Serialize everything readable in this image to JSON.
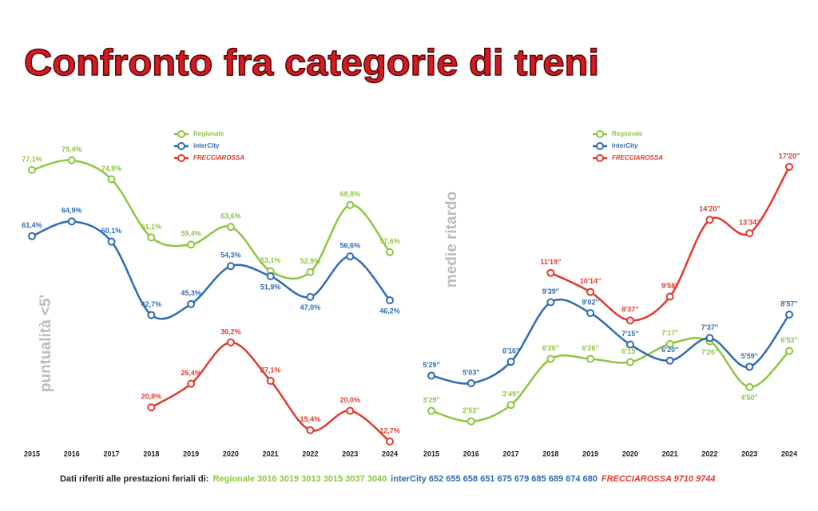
{
  "title": "Confronto fra categorie di treni",
  "chart_data": [
    {
      "type": "line",
      "ylabel": "puntualità <5'",
      "legend": "top-center",
      "categories": [
        "2015",
        "2016",
        "2017",
        "2018",
        "2019",
        "2020",
        "2021",
        "2022",
        "2023",
        "2024"
      ],
      "ylim": [
        11,
        82
      ],
      "series": [
        {
          "name": "Regionale",
          "color": "#8dc63f",
          "values": [
            77.1,
            79.4,
            74.9,
            61.1,
            59.4,
            63.6,
            53.1,
            52.9,
            68.8,
            57.6
          ],
          "value_labels": [
            "77,1%",
            "79,4%",
            "74,9%",
            "61,1%",
            "59,4%",
            "63,6%",
            "53,1%",
            "52,9%",
            "68,8%",
            "57,6%"
          ]
        },
        {
          "name": "interCity",
          "color": "#2e6bb5",
          "values": [
            61.4,
            64.9,
            60.1,
            42.7,
            45.3,
            54.3,
            51.9,
            47.0,
            56.6,
            46.2
          ],
          "value_labels": [
            "61,4%",
            "64,9%",
            "60,1%",
            "42,7%",
            "45,3%",
            "54,3%",
            "51,9%",
            "47,0%",
            "56,6%",
            "46,2%"
          ]
        },
        {
          "name": "FRECCIAROSSA",
          "color": "#e03a2e",
          "values": [
            null,
            null,
            null,
            20.8,
            26.4,
            36.2,
            27.1,
            15.4,
            20.0,
            12.7
          ],
          "value_labels": [
            null,
            null,
            null,
            "20,8%",
            "26,4%",
            "36,2%",
            "27,1%",
            "15,4%",
            "20,0%",
            "12,7%"
          ]
        }
      ]
    },
    {
      "type": "line",
      "ylabel": "medie ritardo",
      "legend": "top-center",
      "categories": [
        "2015",
        "2016",
        "2017",
        "2018",
        "2019",
        "2020",
        "2021",
        "2022",
        "2023",
        "2024"
      ],
      "ylim": [
        80,
        1100
      ],
      "series": [
        {
          "name": "Regionale",
          "color": "#8dc63f",
          "values": [
            209,
            173,
            229,
            386,
            386,
            375,
            437,
            446,
            290,
            413
          ],
          "value_labels": [
            "3'29''",
            "2'53''",
            "3'49''",
            "6'26''",
            "6'26''",
            "6'15''",
            "7'17''",
            "7'26''",
            "4'50''",
            "6'53''"
          ]
        },
        {
          "name": "interCity",
          "color": "#2e6bb5",
          "values": [
            329,
            303,
            376,
            579,
            542,
            435,
            380,
            457,
            359,
            537
          ],
          "value_labels": [
            "5'29''",
            "5'03''",
            "6'16''",
            "9'39''",
            "9'02''",
            "7'15''",
            "6'20''",
            "7'37''",
            "5'59''",
            "8'57''"
          ]
        },
        {
          "name": "FRECCIAROSSA",
          "color": "#e03a2e",
          "values": [
            null,
            null,
            null,
            679,
            614,
            517,
            598,
            860,
            814,
            1040
          ],
          "value_labels": [
            null,
            null,
            null,
            "11'19''",
            "10'14''",
            "8'37''",
            "9'58''",
            "14'20''",
            "13'34''",
            "17'20''"
          ]
        }
      ]
    }
  ],
  "footer": {
    "prefix": "Dati riferiti alle prestazioni feriali di:",
    "parts": [
      {
        "text": "Regionale 3016 3019 3013 3015 3037 3040",
        "color": "#8dc63f"
      },
      {
        "text": "interCity 652 655 658 651 675 679 685 689 674 680",
        "color": "#2e6bb5"
      },
      {
        "text": "FRECCIAROSSA 9710 9744",
        "color": "#e03a2e"
      }
    ]
  }
}
